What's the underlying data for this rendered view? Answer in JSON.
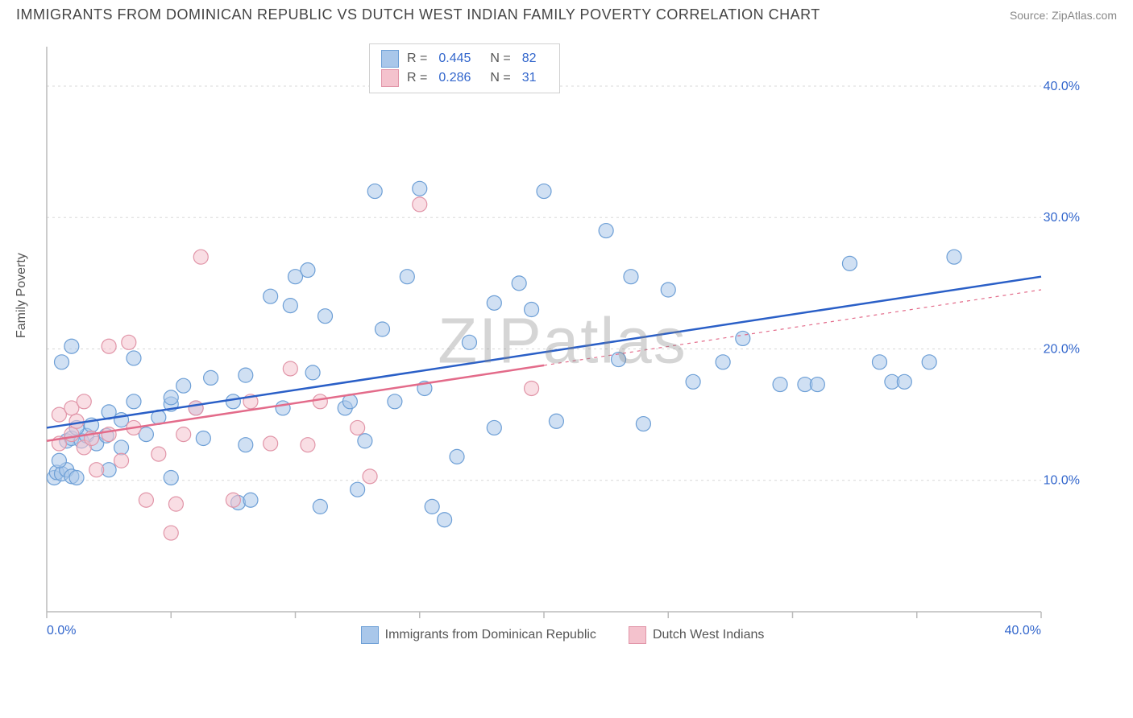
{
  "header": {
    "title": "IMMIGRANTS FROM DOMINICAN REPUBLIC VS DUTCH WEST INDIAN FAMILY POVERTY CORRELATION CHART",
    "source": "Source: ZipAtlas.com"
  },
  "watermark": "ZIPatlas",
  "chart": {
    "type": "scatter",
    "ylabel": "Family Poverty",
    "xlim": [
      0,
      40
    ],
    "ylim": [
      0,
      43
    ],
    "x_ticks": [
      0,
      5,
      10,
      15,
      20,
      25,
      30,
      35,
      40
    ],
    "x_tick_labels": {
      "0": "0.0%",
      "40": "40.0%"
    },
    "y_ticks": [
      10,
      20,
      30,
      40
    ],
    "y_tick_labels": {
      "10": "10.0%",
      "20": "20.0%",
      "30": "30.0%",
      "40": "40.0%"
    },
    "grid_color": "#d8d8d8",
    "axis_color": "#bbbbbb",
    "tick_label_color": "#3266cc",
    "background_color": "#ffffff",
    "marker_radius": 9,
    "marker_opacity": 0.55,
    "line_width": 2.5,
    "series": [
      {
        "name": "Immigrants from Dominican Republic",
        "color_fill": "#a9c7ea",
        "color_stroke": "#6d9fd6",
        "line_color": "#2a5fc7",
        "dashed_extension": false,
        "R": "0.445",
        "N": "82",
        "trend": {
          "x1": 0,
          "y1": 14.0,
          "x2": 40,
          "y2": 25.5
        },
        "points": [
          [
            0.3,
            10.2
          ],
          [
            0.4,
            10.6
          ],
          [
            0.6,
            10.5
          ],
          [
            0.8,
            10.8
          ],
          [
            0.5,
            11.5
          ],
          [
            1.0,
            10.3
          ],
          [
            1.2,
            10.2
          ],
          [
            0.8,
            13.0
          ],
          [
            1.0,
            13.2
          ],
          [
            1.4,
            13.0
          ],
          [
            1.6,
            13.4
          ],
          [
            1.2,
            14.0
          ],
          [
            1.8,
            14.2
          ],
          [
            2.0,
            12.8
          ],
          [
            0.6,
            19.0
          ],
          [
            1.0,
            20.2
          ],
          [
            2.5,
            15.2
          ],
          [
            2.5,
            10.8
          ],
          [
            2.4,
            13.4
          ],
          [
            3.0,
            12.5
          ],
          [
            3.0,
            14.6
          ],
          [
            3.5,
            16.0
          ],
          [
            3.5,
            19.3
          ],
          [
            4.0,
            13.5
          ],
          [
            4.5,
            14.8
          ],
          [
            5.0,
            15.8
          ],
          [
            5.0,
            16.3
          ],
          [
            5.0,
            10.2
          ],
          [
            5.5,
            17.2
          ],
          [
            6.0,
            15.5
          ],
          [
            6.3,
            13.2
          ],
          [
            6.6,
            17.8
          ],
          [
            7.5,
            16.0
          ],
          [
            7.7,
            8.3
          ],
          [
            8.0,
            12.7
          ],
          [
            8.0,
            18.0
          ],
          [
            8.2,
            8.5
          ],
          [
            9.0,
            24.0
          ],
          [
            9.5,
            15.5
          ],
          [
            9.8,
            23.3
          ],
          [
            10.0,
            25.5
          ],
          [
            10.5,
            26.0
          ],
          [
            10.7,
            18.2
          ],
          [
            11.0,
            8.0
          ],
          [
            11.2,
            22.5
          ],
          [
            12.0,
            15.5
          ],
          [
            12.2,
            16.0
          ],
          [
            12.5,
            9.3
          ],
          [
            12.8,
            13.0
          ],
          [
            13.2,
            32.0
          ],
          [
            13.5,
            21.5
          ],
          [
            14.0,
            16.0
          ],
          [
            14.5,
            25.5
          ],
          [
            15.0,
            32.2
          ],
          [
            15.2,
            17.0
          ],
          [
            15.5,
            8.0
          ],
          [
            16.0,
            7.0
          ],
          [
            16.5,
            11.8
          ],
          [
            17.0,
            20.5
          ],
          [
            18.0,
            23.5
          ],
          [
            18.0,
            14.0
          ],
          [
            19.0,
            25.0
          ],
          [
            19.5,
            23.0
          ],
          [
            20.0,
            32.0
          ],
          [
            20.5,
            14.5
          ],
          [
            22.5,
            29.0
          ],
          [
            23.0,
            19.2
          ],
          [
            23.5,
            25.5
          ],
          [
            24.0,
            14.3
          ],
          [
            25.0,
            24.5
          ],
          [
            26.0,
            17.5
          ],
          [
            27.2,
            19.0
          ],
          [
            28.0,
            20.8
          ],
          [
            29.5,
            17.3
          ],
          [
            30.5,
            17.3
          ],
          [
            31.0,
            17.3
          ],
          [
            32.3,
            26.5
          ],
          [
            33.5,
            19.0
          ],
          [
            34.0,
            17.5
          ],
          [
            34.5,
            17.5
          ],
          [
            35.5,
            19.0
          ],
          [
            36.5,
            27.0
          ]
        ]
      },
      {
        "name": "Dutch West Indians",
        "color_fill": "#f4c2cd",
        "color_stroke": "#e195a8",
        "line_color": "#e36b8a",
        "dashed_extension": true,
        "dashed_from_x": 20,
        "R": "0.286",
        "N": "31",
        "trend": {
          "x1": 0,
          "y1": 13.0,
          "x2": 40,
          "y2": 24.5
        },
        "points": [
          [
            0.5,
            12.8
          ],
          [
            0.5,
            15.0
          ],
          [
            1.0,
            15.5
          ],
          [
            1.0,
            13.5
          ],
          [
            1.2,
            14.5
          ],
          [
            1.5,
            12.5
          ],
          [
            1.5,
            16.0
          ],
          [
            1.8,
            13.2
          ],
          [
            2.0,
            10.8
          ],
          [
            2.5,
            13.5
          ],
          [
            2.5,
            20.2
          ],
          [
            3.0,
            11.5
          ],
          [
            3.3,
            20.5
          ],
          [
            3.5,
            14.0
          ],
          [
            4.0,
            8.5
          ],
          [
            4.5,
            12.0
          ],
          [
            5.0,
            6.0
          ],
          [
            5.2,
            8.2
          ],
          [
            5.5,
            13.5
          ],
          [
            6.0,
            15.5
          ],
          [
            6.2,
            27.0
          ],
          [
            7.5,
            8.5
          ],
          [
            8.2,
            16.0
          ],
          [
            9.0,
            12.8
          ],
          [
            9.8,
            18.5
          ],
          [
            10.5,
            12.7
          ],
          [
            11.0,
            16.0
          ],
          [
            12.5,
            14.0
          ],
          [
            13.0,
            10.3
          ],
          [
            15.0,
            31.0
          ],
          [
            19.5,
            17.0
          ]
        ]
      }
    ],
    "bottom_legend": [
      {
        "label": "Immigrants from Dominican Republic",
        "fill": "#a9c7ea",
        "stroke": "#6d9fd6"
      },
      {
        "label": "Dutch West Indians",
        "fill": "#f4c2cd",
        "stroke": "#e195a8"
      }
    ]
  }
}
